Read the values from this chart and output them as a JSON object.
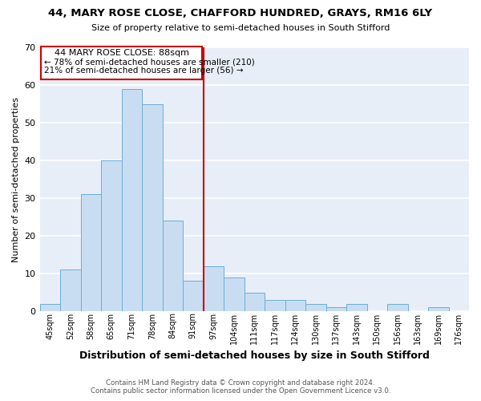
{
  "title1": "44, MARY ROSE CLOSE, CHAFFORD HUNDRED, GRAYS, RM16 6LY",
  "title2": "Size of property relative to semi-detached houses in South Stifford",
  "xlabel": "Distribution of semi-detached houses by size in South Stifford",
  "ylabel": "Number of semi-detached properties",
  "categories": [
    "45sqm",
    "52sqm",
    "58sqm",
    "65sqm",
    "71sqm",
    "78sqm",
    "84sqm",
    "91sqm",
    "97sqm",
    "104sqm",
    "111sqm",
    "117sqm",
    "124sqm",
    "130sqm",
    "137sqm",
    "143sqm",
    "150sqm",
    "156sqm",
    "163sqm",
    "169sqm",
    "176sqm"
  ],
  "values": [
    2,
    11,
    31,
    40,
    59,
    55,
    24,
    8,
    12,
    9,
    5,
    3,
    3,
    2,
    1,
    2,
    0,
    2,
    0,
    1,
    0
  ],
  "bar_color": "#c8ddf2",
  "bar_edge_color": "#6aaed6",
  "vline_color": "#cc0000",
  "vline_x": 7.5,
  "annotation_line1": "44 MARY ROSE CLOSE: 88sqm",
  "annotation_line2": "← 78% of semi-detached houses are smaller (210)",
  "annotation_line3": "21% of semi-detached houses are larger (56) →",
  "annotation_box_color": "#cc0000",
  "ylim": [
    0,
    70
  ],
  "yticks": [
    0,
    10,
    20,
    30,
    40,
    50,
    60,
    70
  ],
  "plot_bg_color": "#e8eef8",
  "fig_bg_color": "#ffffff",
  "grid_color": "#ffffff",
  "footer1": "Contains HM Land Registry data © Crown copyright and database right 2024.",
  "footer2": "Contains public sector information licensed under the Open Government Licence v3.0."
}
